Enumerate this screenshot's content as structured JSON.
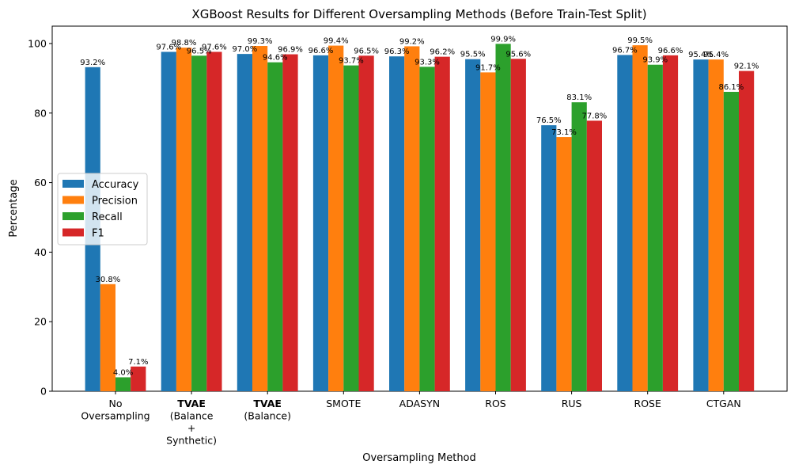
{
  "chart_data": {
    "type": "bar",
    "title": "XGBoost Results for Different Oversampling Methods (Before Train-Test Split)",
    "xlabel": "Oversampling Method",
    "ylabel": "Percentage",
    "ylim": [
      0,
      105
    ],
    "yticks": [
      0,
      20,
      40,
      60,
      80,
      100
    ],
    "grid": false,
    "legend_position": "center-left",
    "categories": [
      {
        "lines": [
          "No",
          "Oversampling"
        ],
        "bold_first_line": false
      },
      {
        "lines": [
          "TVAE",
          "(Balance",
          "+",
          "Synthetic)"
        ],
        "bold_first_line": true
      },
      {
        "lines": [
          "TVAE",
          "(Balance)"
        ],
        "bold_first_line": true
      },
      {
        "lines": [
          "SMOTE"
        ],
        "bold_first_line": false
      },
      {
        "lines": [
          "ADASYN"
        ],
        "bold_first_line": false
      },
      {
        "lines": [
          "ROS"
        ],
        "bold_first_line": false
      },
      {
        "lines": [
          "RUS"
        ],
        "bold_first_line": false
      },
      {
        "lines": [
          "ROSE"
        ],
        "bold_first_line": false
      },
      {
        "lines": [
          "CTGAN"
        ],
        "bold_first_line": false
      }
    ],
    "series": [
      {
        "name": "Accuracy",
        "color": "#1f77b4",
        "values": [
          93.2,
          97.6,
          97.0,
          96.6,
          96.3,
          95.5,
          76.5,
          96.7,
          95.4
        ]
      },
      {
        "name": "Precision",
        "color": "#ff7f0e",
        "values": [
          30.8,
          98.8,
          99.3,
          99.4,
          99.2,
          91.7,
          73.1,
          99.5,
          95.4
        ]
      },
      {
        "name": "Recall",
        "color": "#2ca02c",
        "values": [
          4.0,
          96.5,
          94.6,
          93.7,
          93.3,
          99.9,
          83.1,
          93.9,
          86.1
        ]
      },
      {
        "name": "F1",
        "color": "#d62728",
        "values": [
          7.1,
          97.6,
          96.9,
          96.5,
          96.2,
          95.6,
          77.8,
          96.6,
          92.1
        ]
      }
    ],
    "value_suffix": "%"
  }
}
